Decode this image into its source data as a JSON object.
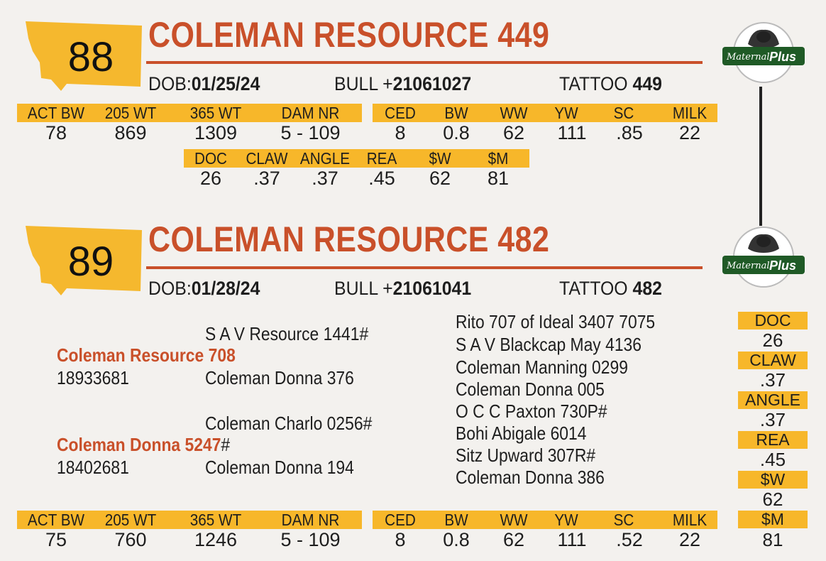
{
  "lot88": {
    "number": "88",
    "name": "COLEMAN RESOURCE 449",
    "dob_label": "DOB:",
    "dob": "01/25/24",
    "reg_label": "BULL +",
    "reg": "21061027",
    "tattoo_label": "TATTOO",
    "tattoo": "449",
    "perf_headers": [
      "ACT BW",
      "205 WT",
      "365 WT",
      "DAM NR"
    ],
    "perf_values": [
      "78",
      "869",
      "1309",
      "5 - 109"
    ],
    "epd_headers": [
      "CED",
      "BW",
      "WW",
      "YW",
      "SC",
      "MILK"
    ],
    "epd_values": [
      "8",
      "0.8",
      "62",
      "111",
      ".85",
      "22"
    ],
    "extra_headers": [
      "DOC",
      "CLAW",
      "ANGLE",
      "REA",
      "$W",
      "$M"
    ],
    "extra_values": [
      "26",
      ".37",
      ".37",
      ".45",
      "62",
      "81"
    ]
  },
  "lot89": {
    "number": "89",
    "name": "COLEMAN RESOURCE 482",
    "dob_label": "DOB:",
    "dob": "01/28/24",
    "reg_label": "BULL +",
    "reg": "21061041",
    "tattoo_label": "TATTOO",
    "tattoo": "482",
    "pedigree": {
      "sire_sire": "S A V Resource 1441#",
      "sire": "Coleman Resource 708",
      "sire_reg": "18933681",
      "sire_dam": "Coleman Donna 376",
      "dam_sire": "Coleman Charlo 0256#",
      "dam": "Coleman Donna 5247",
      "dam_mark": "#",
      "dam_reg": "18402681",
      "dam_dam": "Coleman Donna 194",
      "third_gen": [
        "Rito 707 of Ideal 3407 7075",
        "S A V Blackcap May 4136",
        "Coleman Manning 0299",
        "Coleman Donna 005",
        "O C C Paxton 730P#",
        "Bohi Abigale 6014",
        "Sitz Upward 307R#",
        "Coleman Donna 386"
      ]
    },
    "side_headers": [
      "DOC",
      "CLAW",
      "ANGLE",
      "REA",
      "$W",
      "$M"
    ],
    "side_values": [
      "26",
      ".37",
      ".37",
      ".45",
      "62",
      "81"
    ],
    "perf_headers": [
      "ACT BW",
      "205 WT",
      "365 WT",
      "DAM NR"
    ],
    "perf_values": [
      "75",
      "760",
      "1246",
      "5 - 109"
    ],
    "epd_headers": [
      "CED",
      "BW",
      "WW",
      "YW",
      "SC",
      "MILK"
    ],
    "epd_values": [
      "8",
      "0.8",
      "62",
      "111",
      ".52",
      "22"
    ]
  },
  "logo": {
    "text_maternal": "Maternal",
    "text_plus": "Plus"
  },
  "colors": {
    "accent_orange": "#c9502a",
    "header_gold": "#f7b72a",
    "badge_gold": "#f5b82e",
    "logo_green": "#1f5a26"
  }
}
